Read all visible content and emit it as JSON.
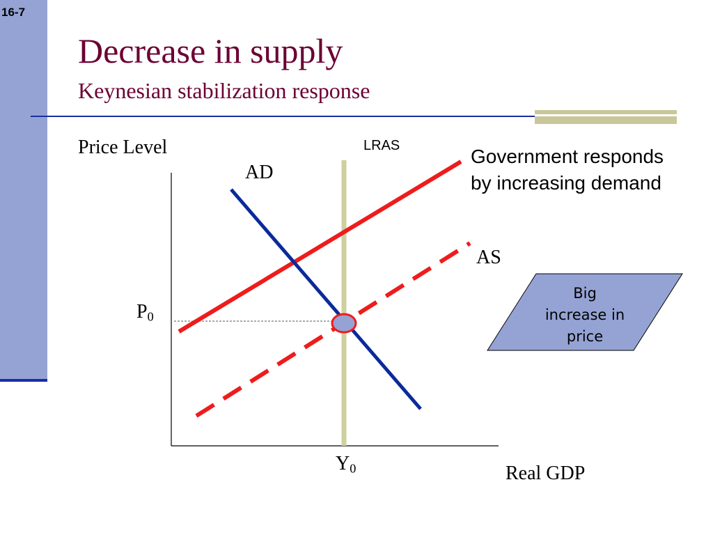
{
  "slide": {
    "number": "16-7",
    "title": "Decrease in supply",
    "subtitle": "Keynesian stabilization response"
  },
  "diagram": {
    "y_axis_label": "Price Level",
    "x_axis_label": "Real GDP",
    "lras_label": "LRAS",
    "ad_label": "AD",
    "as_label": "AS",
    "p0_main": "P",
    "p0_sub": "0",
    "y0_main": "Y",
    "y0_sub": "0",
    "annotation": [
      "Government responds",
      "by increasing demand"
    ],
    "callout": [
      "Big",
      "increase in",
      "price"
    ],
    "colors": {
      "ad_curve": "#0b2a9a",
      "as_original_dashed": "#ee1c1c",
      "as_shifted": "#ee1c1c",
      "lras": "#cfcf9f",
      "equilibrium_fill": "#95a3d4",
      "equilibrium_stroke": "#ee1c1c",
      "callout_fill": "#95a3d4",
      "title": "#6b0033",
      "sidebar": "#95a3d4",
      "rule": "#1a2f9e"
    }
  }
}
